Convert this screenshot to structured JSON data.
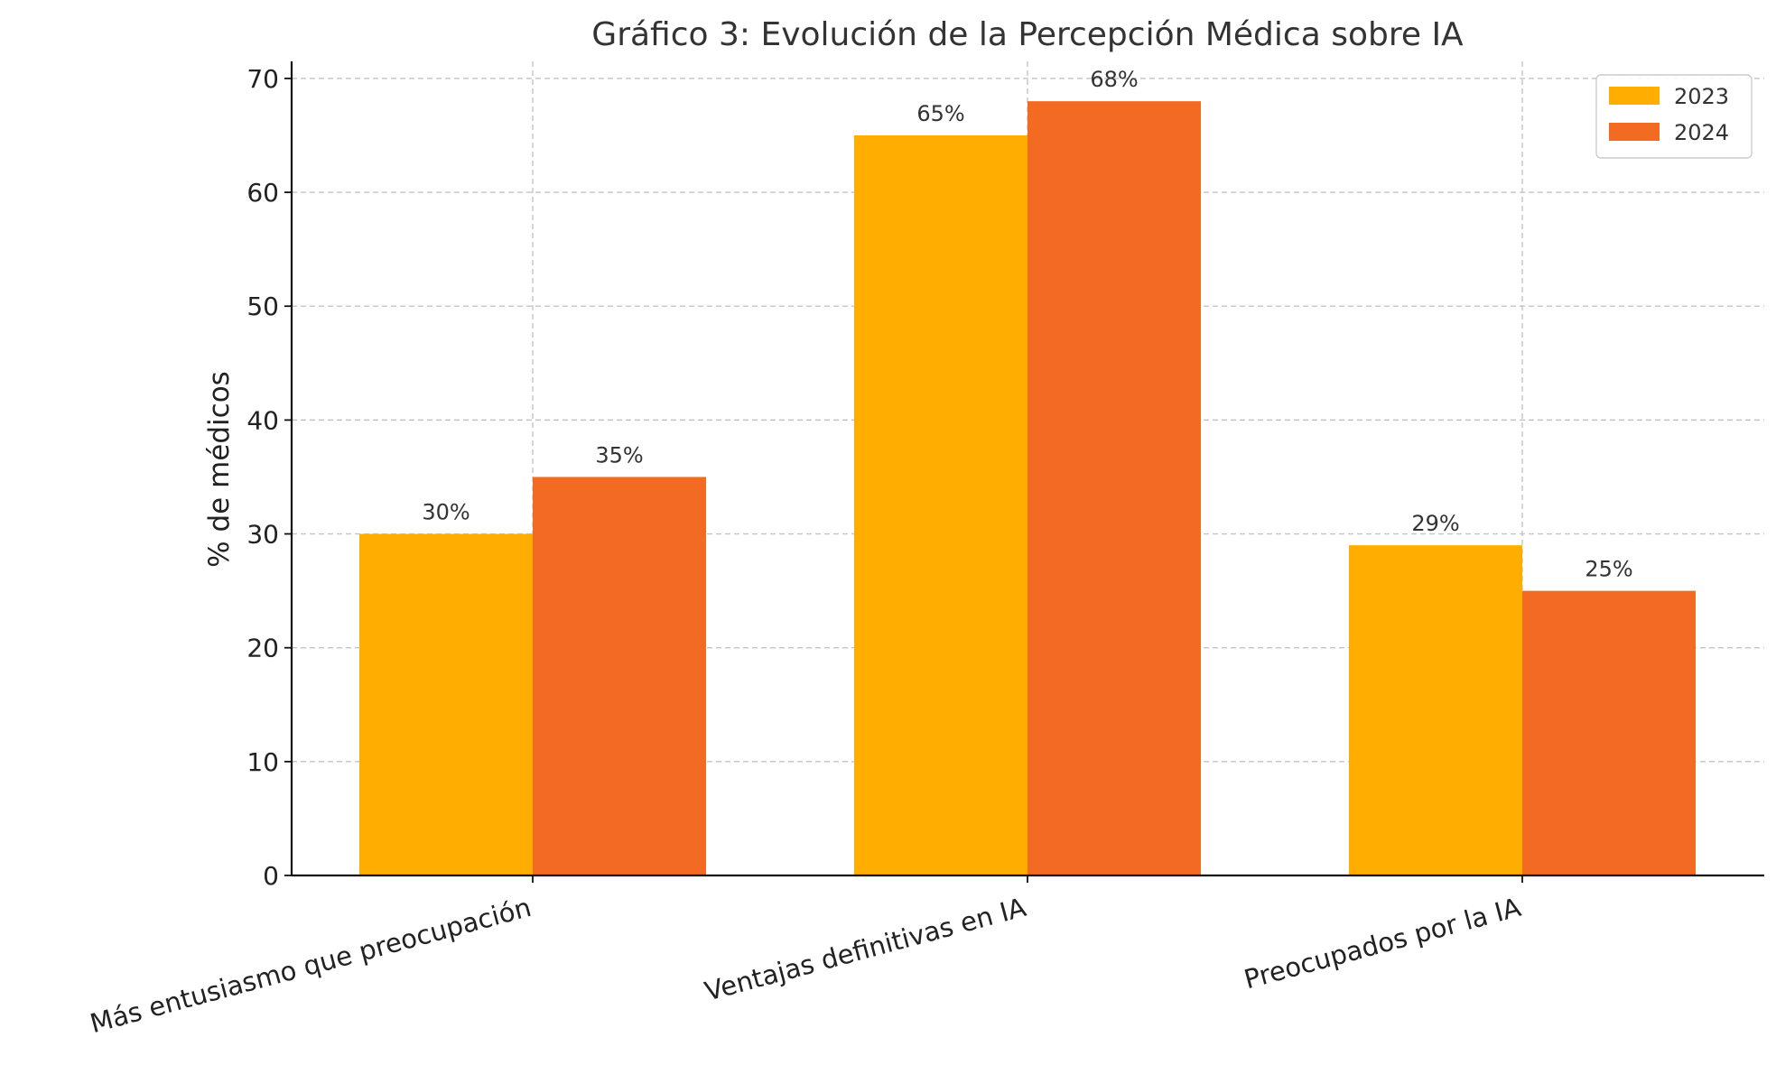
{
  "chart_data": {
    "type": "bar",
    "title": "Gráfico 3: Evolución de la Percepción Médica sobre IA",
    "xlabel": "",
    "ylabel": "% de médicos",
    "ylim": [
      0,
      71.5
    ],
    "yticks": [
      0,
      10,
      20,
      30,
      40,
      50,
      60,
      70
    ],
    "grid": true,
    "legend_position": "top-right",
    "categories": [
      "Más entusiasmo que preocupación",
      "Ventajas definitivas en IA",
      "Preocupados por la IA"
    ],
    "series": [
      {
        "name": "2023",
        "values": [
          30,
          65,
          29
        ],
        "labels": [
          "30%",
          "65%",
          "29%"
        ],
        "color": "#FFAE00"
      },
      {
        "name": "2024",
        "values": [
          35,
          68,
          25
        ],
        "labels": [
          "35%",
          "68%",
          "25%"
        ],
        "color": "#F36B22"
      }
    ]
  }
}
